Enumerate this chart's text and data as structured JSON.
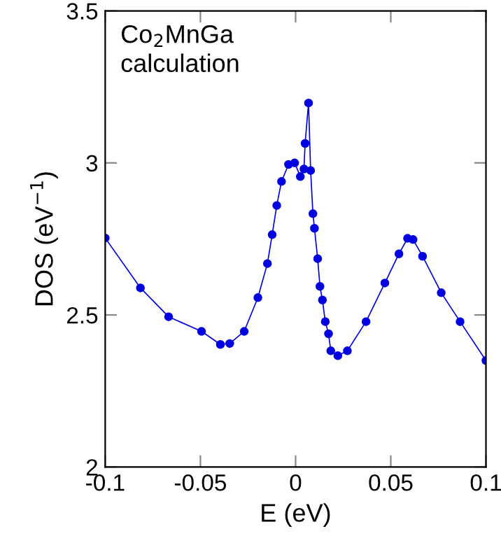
{
  "chart_data": {
    "type": "line",
    "xlabel": "E (eV)",
    "ylabel": "DOS (eV$^{−1}$)",
    "annotations": [
      "Co$_{2}$MnGa\ncalculation"
    ],
    "x": [
      -0.1,
      -0.0815,
      -0.0667,
      -0.0494,
      -0.0395,
      -0.0346,
      -0.027,
      -0.0198,
      -0.0148,
      -0.0123,
      -0.0099,
      -0.0074,
      -0.0037,
      -0.0005,
      0.0025,
      0.0044,
      0.005,
      0.0068,
      0.0079,
      0.0091,
      0.0099,
      0.0116,
      0.0128,
      0.0141,
      0.0156,
      0.0173,
      0.0185,
      0.0222,
      0.0272,
      0.037,
      0.0469,
      0.0543,
      0.0588,
      0.0617,
      0.0667,
      0.0765,
      0.0864,
      0.1
    ],
    "series": [
      {
        "color": "#0000e0",
        "values": [
          2.753,
          2.589,
          2.494,
          2.446,
          2.403,
          2.406,
          2.446,
          2.557,
          2.669,
          2.764,
          2.86,
          2.939,
          2.995,
          3.0,
          2.955,
          2.98,
          3.064,
          3.197,
          2.975,
          2.833,
          2.785,
          2.685,
          2.594,
          2.549,
          2.478,
          2.438,
          2.382,
          2.366,
          2.382,
          2.478,
          2.605,
          2.701,
          2.752,
          2.748,
          2.693,
          2.573,
          2.478,
          2.35
        ]
      }
    ],
    "xlim": [
      -0.1,
      0.1
    ],
    "xticks": [
      -0.1,
      -0.05,
      0,
      0.05,
      0.1
    ],
    "ylim": [
      2,
      3.5
    ],
    "yticks": [
      2,
      2.5,
      3,
      3.5
    ],
    "marker": "circle",
    "line_style": "solid",
    "grid": false,
    "legend": false
  }
}
